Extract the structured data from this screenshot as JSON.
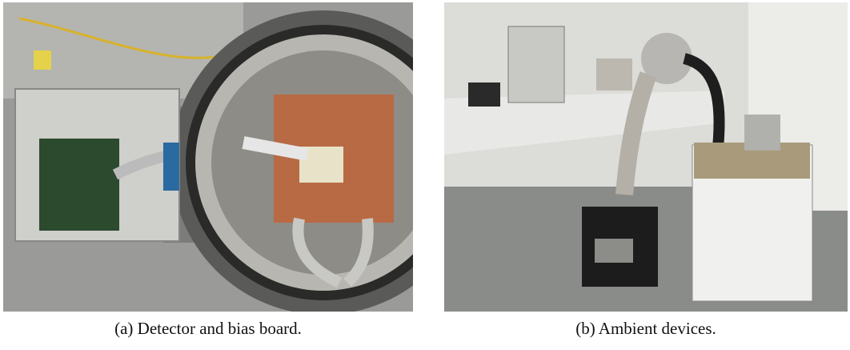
{
  "figures": [
    {
      "caption": "(a) Detector and bias board."
    },
    {
      "caption": "(b) Ambient devices."
    }
  ]
}
